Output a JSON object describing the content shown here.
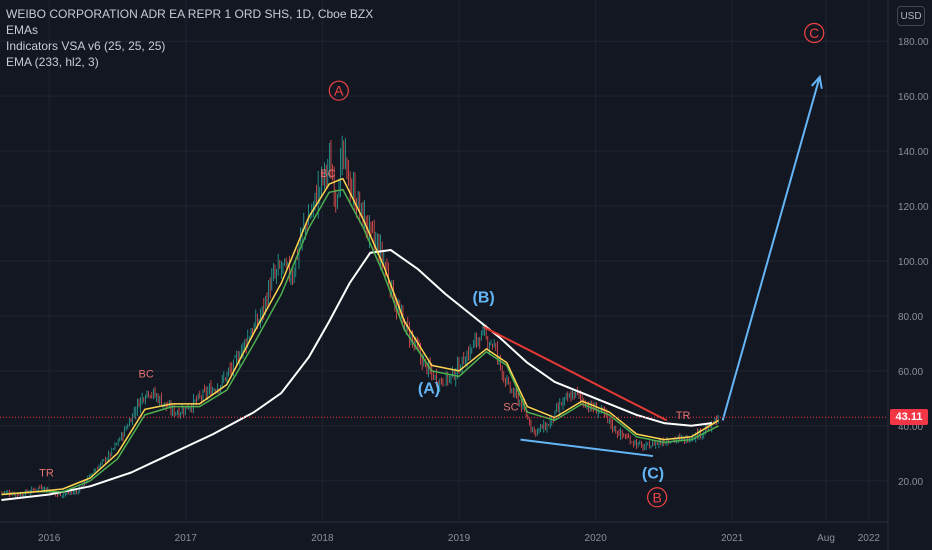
{
  "legend": {
    "symbol": "WEIBO CORPORATION ADR EA REPR 1 ORD SHS, 1D, Cboe BZX",
    "ema_label": "EMAs",
    "vsa_label": "Indicators VSA v6 (25, 25, 25)",
    "ema233_label": "EMA (233, hl2, 3)"
  },
  "currency_button": "USD",
  "last_price": "43.11",
  "colors": {
    "background": "#131722",
    "grid": "#1f2430",
    "candle_up": "#26a69a",
    "candle_down": "#ef5350",
    "ema_fast": "#4caf50",
    "ema_slow": "#ffd54f",
    "ema233": "#ffffff",
    "red_label": "#ef4444",
    "blue_label": "#64b5f6",
    "trendline_red": "#e53935",
    "trendline_blue": "#64b5f6",
    "projection": "#64b5f6"
  },
  "chart_data": {
    "type": "line",
    "title": "WEIBO CORPORATION ADR EA REPR 1 ORD SHS, 1D, Cboe BZX",
    "xlabel": "",
    "ylabel": "",
    "x_ticks": [
      "2016",
      "2017",
      "2018",
      "2019",
      "2020",
      "2021",
      "2022",
      "Aug"
    ],
    "y_ticks": [
      20,
      40,
      60,
      80,
      100,
      120,
      140,
      160,
      180
    ],
    "y_tick_labels": [
      "20.00",
      "40.00",
      "60.00",
      "80.00",
      "100.00",
      "120.00",
      "140.00",
      "160.00",
      "180.00"
    ],
    "ylim": [
      5,
      195
    ],
    "xlim": [
      2015.64,
      2022.14
    ],
    "grid": true,
    "last_price": 43.11,
    "series": [
      {
        "name": "price",
        "x": [
          2015.65,
          2015.8,
          2015.95,
          2016.05,
          2016.2,
          2016.3,
          2016.45,
          2016.55,
          2016.65,
          2016.72,
          2016.8,
          2016.88,
          2016.95,
          2017.05,
          2017.15,
          2017.25,
          2017.35,
          2017.45,
          2017.55,
          2017.62,
          2017.7,
          2017.78,
          2017.85,
          2017.92,
          2018.0,
          2018.05,
          2018.1,
          2018.15,
          2018.2,
          2018.28,
          2018.35,
          2018.45,
          2018.55,
          2018.65,
          2018.75,
          2018.85,
          2018.95,
          2019.05,
          2019.15,
          2019.25,
          2019.35,
          2019.45,
          2019.55,
          2019.65,
          2019.75,
          2019.85,
          2019.95,
          2020.05,
          2020.15,
          2020.25,
          2020.35,
          2020.45,
          2020.55,
          2020.65,
          2020.75,
          2020.85,
          2020.9
        ],
        "values": [
          16,
          15,
          18,
          15,
          16,
          22,
          30,
          38,
          48,
          53,
          50,
          46,
          45,
          48,
          52,
          55,
          62,
          72,
          80,
          92,
          98,
          95,
          110,
          118,
          130,
          135,
          125,
          138,
          128,
          118,
          110,
          100,
          82,
          72,
          62,
          56,
          58,
          65,
          73,
          70,
          55,
          48,
          38,
          40,
          48,
          52,
          47,
          45,
          38,
          35,
          32,
          34,
          35,
          35,
          37,
          40,
          43
        ]
      },
      {
        "name": "EMA 233",
        "x": [
          2015.65,
          2016.0,
          2016.3,
          2016.6,
          2016.9,
          2017.2,
          2017.5,
          2017.7,
          2017.9,
          2018.05,
          2018.2,
          2018.35,
          2018.5,
          2018.7,
          2018.9,
          2019.1,
          2019.3,
          2019.5,
          2019.7,
          2019.9,
          2020.1,
          2020.3,
          2020.5,
          2020.7,
          2020.85
        ],
        "values": [
          13,
          15,
          18,
          23,
          30,
          37,
          45,
          52,
          65,
          78,
          92,
          103,
          104,
          97,
          88,
          80,
          72,
          63,
          56,
          52,
          48,
          44,
          41,
          40,
          41
        ]
      },
      {
        "name": "EMA fast",
        "x": [
          2015.65,
          2015.9,
          2016.1,
          2016.3,
          2016.5,
          2016.7,
          2016.9,
          2017.1,
          2017.3,
          2017.5,
          2017.7,
          2017.9,
          2018.05,
          2018.15,
          2018.3,
          2018.45,
          2018.6,
          2018.8,
          2019.0,
          2019.2,
          2019.35,
          2019.5,
          2019.7,
          2019.9,
          2020.1,
          2020.3,
          2020.5,
          2020.7,
          2020.9
        ],
        "values": [
          15,
          16,
          16,
          20,
          28,
          44,
          47,
          47,
          53,
          70,
          88,
          112,
          125,
          126,
          112,
          95,
          75,
          60,
          58,
          67,
          62,
          45,
          42,
          48,
          44,
          36,
          34,
          35,
          40
        ]
      },
      {
        "name": "EMA slow",
        "x": [
          2015.65,
          2015.9,
          2016.1,
          2016.3,
          2016.5,
          2016.7,
          2016.9,
          2017.1,
          2017.3,
          2017.5,
          2017.7,
          2017.9,
          2018.05,
          2018.15,
          2018.3,
          2018.45,
          2018.6,
          2018.8,
          2019.0,
          2019.2,
          2019.35,
          2019.5,
          2019.7,
          2019.9,
          2020.1,
          2020.3,
          2020.5,
          2020.7,
          2020.9
        ],
        "values": [
          15,
          16,
          17,
          21,
          30,
          46,
          48,
          48,
          55,
          74,
          92,
          116,
          128,
          130,
          115,
          98,
          78,
          62,
          60,
          68,
          63,
          47,
          43,
          49,
          45,
          37,
          35,
          36,
          42
        ]
      }
    ],
    "annotations": [
      {
        "text": "A",
        "x": 2018.12,
        "y": 162,
        "circled": true,
        "color": "red"
      },
      {
        "text": "B",
        "x": 2020.45,
        "y": 14,
        "circled": true,
        "color": "red"
      },
      {
        "text": "C",
        "x": 2021.6,
        "y": 183,
        "circled": true,
        "color": "red"
      },
      {
        "text": "(A)",
        "x": 2018.78,
        "y": 54,
        "color": "blue"
      },
      {
        "text": "(B)",
        "x": 2019.18,
        "y": 87,
        "color": "blue"
      },
      {
        "text": "(C)",
        "x": 2020.42,
        "y": 23,
        "color": "blue"
      },
      {
        "text": "TR",
        "x": 2015.98,
        "y": 23,
        "color": "red-small"
      },
      {
        "text": "BC",
        "x": 2016.71,
        "y": 59,
        "color": "red-small"
      },
      {
        "text": "BC",
        "x": 2018.04,
        "y": 132,
        "color": "red-small"
      },
      {
        "text": "SC",
        "x": 2019.38,
        "y": 47,
        "color": "red-small"
      },
      {
        "text": "TR",
        "x": 2020.64,
        "y": 44,
        "color": "red-small"
      }
    ],
    "lines": [
      {
        "name": "red-trendline",
        "x": [
          2019.18,
          2020.52
        ],
        "y": [
          76,
          42
        ]
      },
      {
        "name": "blue-support-line",
        "x": [
          2019.45,
          2020.42
        ],
        "y": [
          35,
          29
        ]
      },
      {
        "name": "projection-arrow",
        "x": [
          2020.93,
          2021.64
        ],
        "y": [
          42,
          167
        ]
      }
    ]
  }
}
